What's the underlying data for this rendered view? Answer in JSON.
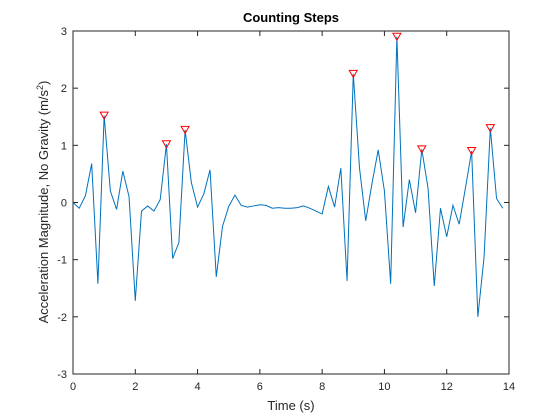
{
  "chart_data": {
    "type": "line",
    "title": "Counting Steps",
    "xlabel": "Time (s)",
    "ylabel": {
      "text": "Acceleration Magnitude, No Gravity (m/s",
      "sup": "2",
      "end": ")"
    },
    "x": [
      0,
      0.2,
      0.4,
      0.6,
      0.8,
      1.0,
      1.2,
      1.4,
      1.6,
      1.8,
      2.0,
      2.2,
      2.4,
      2.6,
      2.8,
      3.0,
      3.2,
      3.4,
      3.6,
      3.8,
      4.0,
      4.2,
      4.4,
      4.6,
      4.8,
      5.0,
      5.2,
      5.4,
      5.6,
      5.8,
      6.0,
      6.2,
      6.4,
      6.6,
      6.8,
      7.0,
      7.2,
      7.4,
      7.6,
      7.8,
      8.0,
      8.2,
      8.4,
      8.6,
      8.8,
      9.0,
      9.2,
      9.4,
      9.6,
      9.8,
      10.0,
      10.2,
      10.4,
      10.6,
      10.8,
      11.0,
      11.2,
      11.4,
      11.6,
      11.8,
      12.0,
      12.2,
      12.4,
      12.6,
      12.8,
      13.0,
      13.2,
      13.4,
      13.6,
      13.8
    ],
    "series": [
      {
        "color": "#0072bd",
        "values": [
          0,
          -0.1,
          0.12,
          0.68,
          -1.42,
          1.52,
          0.2,
          -0.12,
          0.55,
          0.1,
          -1.72,
          -0.15,
          -0.06,
          -0.15,
          0.05,
          1.02,
          -0.98,
          -0.7,
          1.27,
          0.35,
          -0.08,
          0.15,
          0.57,
          -1.3,
          -0.42,
          -0.07,
          0.13,
          -0.05,
          -0.08,
          -0.06,
          -0.04,
          -0.05,
          -0.1,
          -0.09,
          -0.1,
          -0.1,
          -0.09,
          -0.06,
          -0.1,
          -0.15,
          -0.2,
          0.28,
          -0.08,
          0.6,
          -1.37,
          2.25,
          0.6,
          -0.32,
          0.33,
          0.92,
          0.2,
          -1.42,
          2.9,
          -0.43,
          0.4,
          -0.18,
          0.93,
          0.25,
          -1.46,
          -0.1,
          -0.6,
          -0.05,
          -0.38,
          0.25,
          0.9,
          -2.0,
          -0.95,
          1.3,
          0.07,
          -0.1
        ]
      }
    ],
    "peaks": {
      "color": "#ff0000",
      "marker": "triangle-down",
      "x": [
        1.0,
        3.0,
        3.6,
        9.0,
        10.4,
        11.2,
        12.8,
        13.4
      ],
      "values": [
        1.52,
        1.02,
        1.27,
        2.25,
        2.9,
        0.93,
        0.9,
        1.3
      ]
    },
    "xlim": [
      0,
      14
    ],
    "xticks": [
      0,
      2,
      4,
      6,
      8,
      10,
      12,
      14
    ],
    "ylim": [
      -3,
      3
    ],
    "yticks": [
      -3,
      -2,
      -1,
      0,
      1,
      2,
      3
    ],
    "grid": false
  }
}
